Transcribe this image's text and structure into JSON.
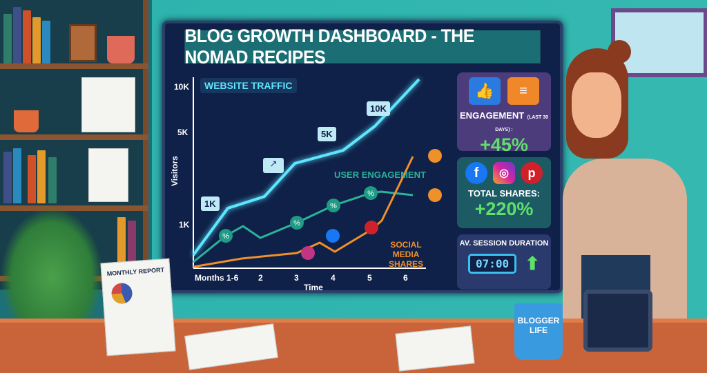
{
  "dashboard": {
    "title": "BLOG GROWTH DASHBOARD - THE NOMAD RECIPES"
  },
  "chart_data": {
    "type": "line",
    "title": "WEBSITE TRAFFIC",
    "xlabel": "Time",
    "ylabel": "Visitors",
    "categories": [
      "Months 1-6",
      "2",
      "3",
      "4",
      "5",
      "6"
    ],
    "y_ticks": [
      "10K",
      "5K",
      "1K"
    ],
    "series": [
      {
        "name": "WEBSITE TRAFFIC",
        "color": "#5fe6ff"
      },
      {
        "name": "USER ENGAGEMENT",
        "color": "#2bb39a"
      },
      {
        "name": "SOCIAL MEDIA SHARES",
        "color": "#f0902a"
      }
    ],
    "callouts": [
      "1K",
      "5K",
      "10K"
    ],
    "marker_symbols": {
      "engagement": "%"
    }
  },
  "cards": {
    "engagement": {
      "label": "ENGAGEMENT",
      "sub": "(LAST 30 DAYS) :",
      "value": "+45%"
    },
    "shares": {
      "label": "TOTAL SHARES:",
      "value": "+220%"
    },
    "session": {
      "label": "AV. SESSION DURATION",
      "value": "07:00"
    }
  },
  "props": {
    "report_title": "MONTHLY REPORT",
    "mug_text": "BLOGGER LIFE"
  },
  "colors": {
    "screen": "#0f2148",
    "accent_green": "#5ee06a",
    "wall": "#2fb3ae",
    "desk": "#c9643a"
  }
}
